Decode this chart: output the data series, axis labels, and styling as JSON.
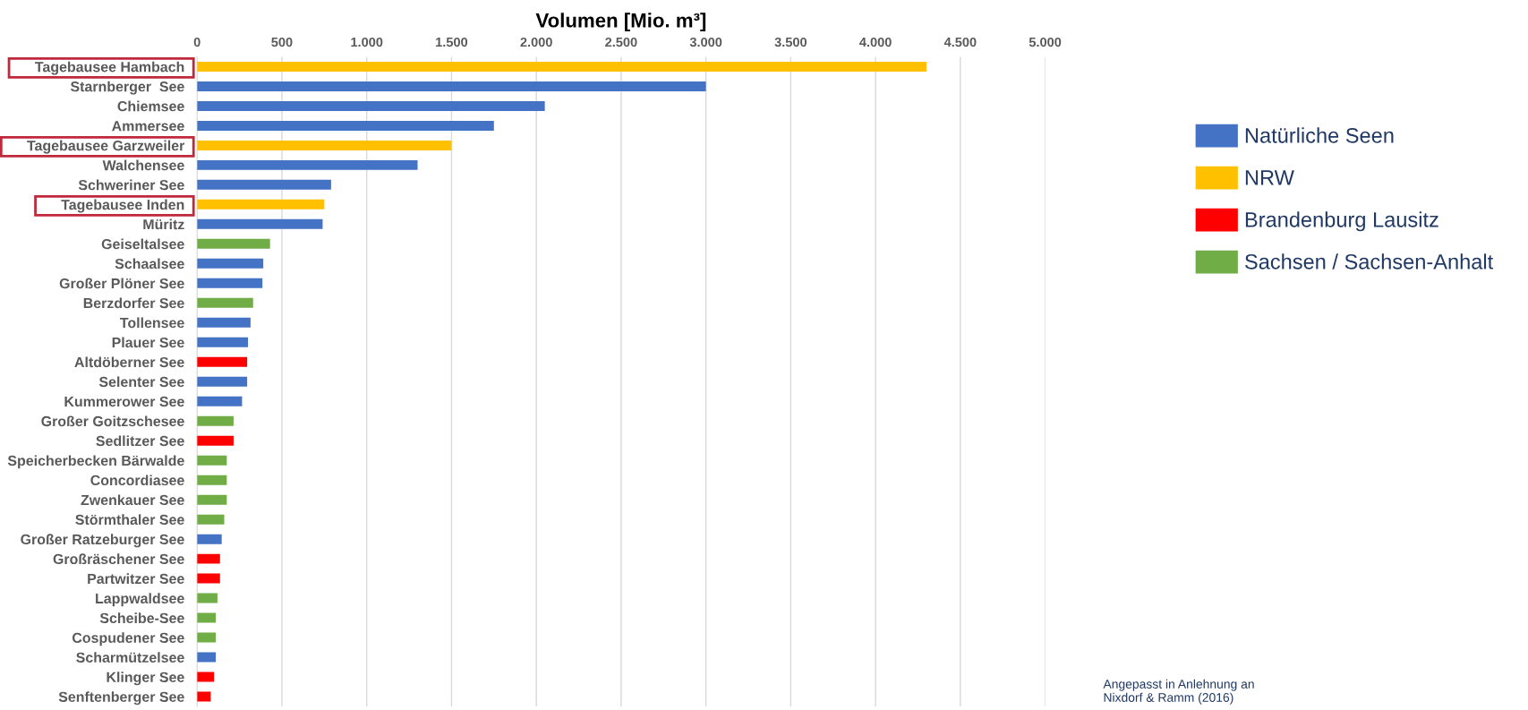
{
  "chart_data": {
    "type": "bar",
    "orientation": "horizontal",
    "xlabel": "Volumen [Mio. m³]",
    "categories": [
      "Tagebausee Hambach",
      "Starnberger  See",
      "Chiemsee",
      "Ammersee",
      "Tagebausee Garzweiler",
      "Walchensee",
      "Schweriner See",
      "Tagebausee Inden",
      "Müritz",
      "Geiseltalsee",
      "Schaalsee",
      "Großer Plöner See",
      "Berzdorfer See",
      "Tollensee",
      "Plauer See",
      "Altdöberner See",
      "Selenter See",
      "Kummerower See",
      "Großer Goitzschesee",
      "Sedlitzer See",
      "Speicherbecken Bärwalde",
      "Concordiasee",
      "Zwenkauer See",
      "Störmthaler See",
      "Großer Ratzeburger See",
      "Großräschener See",
      "Partwitzer See",
      "Lappwaldsee",
      "Scheibe-See",
      "Cospudener See",
      "Scharmützelsee",
      "Klinger See",
      "Senftenberger See"
    ],
    "series": [
      {
        "name": "Natürliche Seen",
        "color": "#4472c4",
        "values": [
          null,
          3000,
          2050,
          1750,
          null,
          1300,
          790,
          null,
          740,
          null,
          390,
          385,
          null,
          315,
          300,
          null,
          295,
          265,
          null,
          null,
          null,
          null,
          null,
          null,
          145,
          null,
          null,
          null,
          null,
          null,
          110,
          null,
          null
        ]
      },
      {
        "name": "NRW",
        "color": "#ffc000",
        "values": [
          4300,
          null,
          null,
          null,
          1500,
          null,
          null,
          750,
          null,
          null,
          null,
          null,
          null,
          null,
          null,
          null,
          null,
          null,
          null,
          null,
          null,
          null,
          null,
          null,
          null,
          null,
          null,
          null,
          null,
          null,
          null,
          null,
          null
        ]
      },
      {
        "name": "Brandenburg Lausitz",
        "color": "#ff0000",
        "values": [
          null,
          null,
          null,
          null,
          null,
          null,
          null,
          null,
          null,
          null,
          null,
          null,
          null,
          null,
          null,
          295,
          null,
          null,
          null,
          215,
          null,
          null,
          null,
          null,
          null,
          135,
          135,
          null,
          null,
          null,
          null,
          100,
          80
        ]
      },
      {
        "name": "Sachsen / Sachsen-Anhalt",
        "color": "#70ad47",
        "values": [
          null,
          null,
          null,
          null,
          null,
          null,
          null,
          null,
          null,
          430,
          null,
          null,
          330,
          null,
          null,
          null,
          null,
          null,
          215,
          null,
          175,
          175,
          175,
          160,
          null,
          null,
          null,
          120,
          110,
          110,
          null,
          null,
          null
        ]
      }
    ],
    "xlim": [
      0,
      5000
    ],
    "xticks": [
      0,
      500,
      {
        "value": 1000,
        "label": "1.000"
      },
      {
        "value": 1500,
        "label": "1.500"
      },
      {
        "value": 2000,
        "label": "2.000"
      },
      {
        "value": 2500,
        "label": "2.500"
      },
      {
        "value": 3000,
        "label": "3.000"
      },
      {
        "value": 3500,
        "label": "3.500"
      },
      {
        "value": 4000,
        "label": "4.000"
      },
      {
        "value": 4500,
        "label": "4.500"
      },
      {
        "value": 5000,
        "label": "5.000"
      }
    ],
    "grid": "x",
    "legend": "right",
    "annotations": [
      "Angepasst in Anlehnung an\nNixdorf & Ramm (2016)"
    ]
  }
}
